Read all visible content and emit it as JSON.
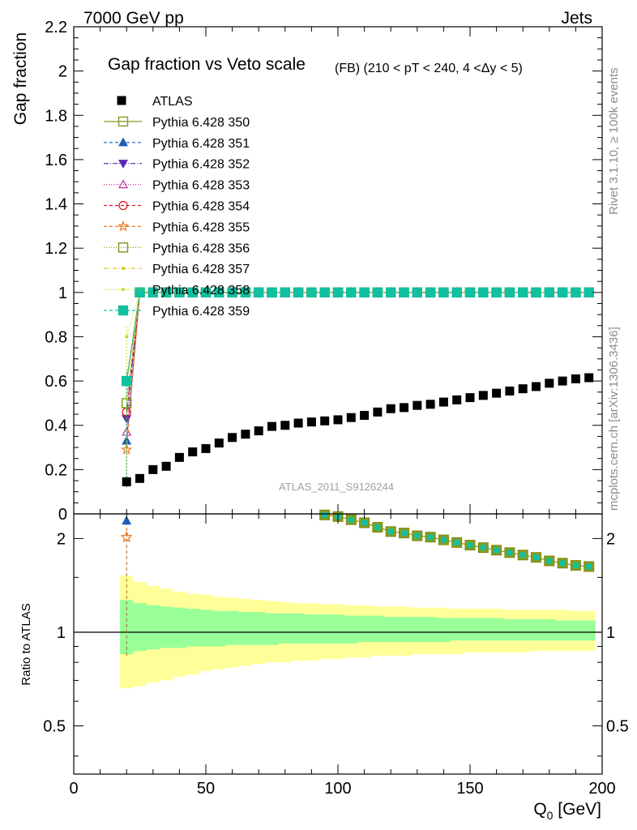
{
  "header": {
    "left": "7000 GeV pp",
    "right": "Jets"
  },
  "side_text": {
    "rivet": "Rivet 3.1.10, ≥ 100k events",
    "mcplots": "mcplots.cern.ch [arXiv:1306.3436]"
  },
  "chart_data": {
    "type": "scatter",
    "title": "Gap fraction vs Veto scale",
    "title_suffix": "(FB) (210 < pT < 240, 4 <Δy < 5)",
    "watermark": "ATLAS_2011_S9126244",
    "xlabel": "Q",
    "xlabel_sub": "0",
    "xlabel_unit": " [GeV]",
    "ylabel_top": "Gap fraction",
    "ylabel_bottom": "Ratio to ATLAS",
    "xlim": [
      0,
      200
    ],
    "ylim_top": [
      0,
      2.2
    ],
    "ylim_bottom_log": [
      0.35,
      2.4
    ],
    "x_ticks": [
      "0",
      "50",
      "100",
      "150",
      "200"
    ],
    "y_ticks_top": [
      "0",
      "0.2",
      "0.4",
      "0.6",
      "0.8",
      "1",
      "1.2",
      "1.4",
      "1.6",
      "1.8",
      "2",
      "2.2"
    ],
    "y_ticks_bottom": [
      "0.5",
      "1",
      "2"
    ],
    "legend_position": "top-left",
    "atlas": {
      "name": "ATLAS",
      "x": [
        20,
        25,
        30,
        35,
        40,
        45,
        50,
        55,
        60,
        65,
        70,
        75,
        80,
        85,
        90,
        95,
        100,
        105,
        110,
        115,
        120,
        125,
        130,
        135,
        140,
        145,
        150,
        155,
        160,
        165,
        170,
        175,
        180,
        185,
        190,
        195
      ],
      "y": [
        0.145,
        0.16,
        0.2,
        0.215,
        0.255,
        0.28,
        0.295,
        0.32,
        0.345,
        0.36,
        0.375,
        0.395,
        0.4,
        0.41,
        0.415,
        0.42,
        0.425,
        0.435,
        0.445,
        0.46,
        0.475,
        0.48,
        0.49,
        0.495,
        0.505,
        0.515,
        0.525,
        0.535,
        0.545,
        0.555,
        0.565,
        0.575,
        0.59,
        0.6,
        0.61,
        0.615
      ],
      "stat_band_hi": [
        1.27,
        1.24,
        1.22,
        1.21,
        1.2,
        1.19,
        1.18,
        1.17,
        1.17,
        1.16,
        1.16,
        1.15,
        1.15,
        1.15,
        1.14,
        1.14,
        1.14,
        1.13,
        1.13,
        1.13,
        1.12,
        1.12,
        1.12,
        1.12,
        1.11,
        1.11,
        1.11,
        1.11,
        1.11,
        1.1,
        1.1,
        1.1,
        1.1,
        1.09,
        1.09,
        1.09
      ],
      "stat_band_lo": [
        0.85,
        0.87,
        0.88,
        0.89,
        0.89,
        0.9,
        0.9,
        0.9,
        0.91,
        0.91,
        0.91,
        0.91,
        0.92,
        0.92,
        0.92,
        0.92,
        0.92,
        0.92,
        0.93,
        0.93,
        0.93,
        0.93,
        0.93,
        0.93,
        0.93,
        0.94,
        0.94,
        0.94,
        0.94,
        0.94,
        0.94,
        0.94,
        0.94,
        0.94,
        0.94,
        0.94
      ],
      "total_band_hi": [
        1.52,
        1.45,
        1.41,
        1.38,
        1.35,
        1.33,
        1.32,
        1.3,
        1.29,
        1.28,
        1.27,
        1.26,
        1.25,
        1.24,
        1.24,
        1.23,
        1.23,
        1.22,
        1.22,
        1.21,
        1.21,
        1.21,
        1.2,
        1.2,
        1.2,
        1.19,
        1.19,
        1.19,
        1.19,
        1.18,
        1.18,
        1.18,
        1.18,
        1.18,
        1.17,
        1.17
      ],
      "total_band_lo": [
        0.66,
        0.67,
        0.69,
        0.7,
        0.72,
        0.73,
        0.75,
        0.76,
        0.77,
        0.78,
        0.79,
        0.8,
        0.8,
        0.81,
        0.81,
        0.82,
        0.82,
        0.83,
        0.83,
        0.84,
        0.84,
        0.84,
        0.85,
        0.85,
        0.85,
        0.85,
        0.86,
        0.86,
        0.86,
        0.86,
        0.86,
        0.87,
        0.87,
        0.87,
        0.87,
        0.87
      ]
    },
    "series": [
      {
        "name": "Pythia 6.428 350",
        "color": "#8a9a1e",
        "marker": "open-square",
        "dash": "solid",
        "y20": 0.6
      },
      {
        "name": "Pythia 6.428 351",
        "color": "#1c5fb8",
        "marker": "filled-triangle-up",
        "dash": "4,3",
        "y20": 0.33
      },
      {
        "name": "Pythia 6.428 352",
        "color": "#5a28b4",
        "marker": "filled-triangle-down",
        "dash": "6,2,1,2",
        "y20": 0.43
      },
      {
        "name": "Pythia 6.428 353",
        "color": "#c030a0",
        "marker": "open-triangle-up",
        "dash": "1,2",
        "y20": 0.37
      },
      {
        "name": "Pythia 6.428 354",
        "color": "#e01020",
        "marker": "open-circle",
        "dash": "4,3",
        "y20": 0.46
      },
      {
        "name": "Pythia 6.428 355",
        "color": "#f07820",
        "marker": "star",
        "dash": "4,3",
        "y20": 0.29
      },
      {
        "name": "Pythia 6.428 356",
        "color": "#7a9a10",
        "marker": "open-square",
        "dash": "1,2",
        "y20": 0.5
      },
      {
        "name": "Pythia 6.428 357",
        "color": "#d8c820",
        "marker": "small-dot",
        "dash": "6,2,1,2",
        "y20": 0.52
      },
      {
        "name": "Pythia 6.428 358",
        "color": "#b8e020",
        "marker": "small-dot",
        "dash": "1,2",
        "y20": 0.8
      },
      {
        "name": "Pythia 6.428 359",
        "color": "#10c0a0",
        "marker": "filled-square",
        "dash": "4,3",
        "y20": 0.6
      }
    ],
    "mc_y_from_25": 1.0,
    "ratio_points_20": [
      {
        "series": "Pythia 6.428 351",
        "value": 2.28
      },
      {
        "series": "Pythia 6.428 355",
        "value": 2.02
      }
    ]
  }
}
